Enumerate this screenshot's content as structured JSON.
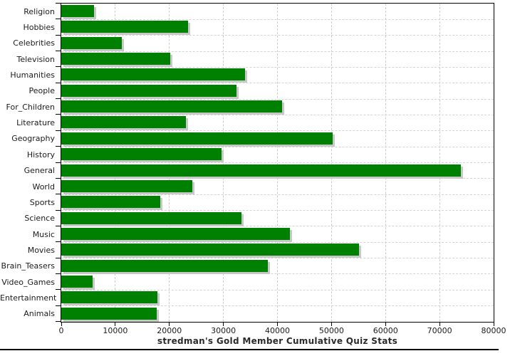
{
  "chart_data": {
    "type": "bar",
    "orientation": "horizontal",
    "title": "stredman's Gold Member Cumulative Quiz Stats",
    "categories": [
      "Religion",
      "Hobbies",
      "Celebrities",
      "Television",
      "Humanities",
      "People",
      "For_Children",
      "Literature",
      "Geography",
      "History",
      "General",
      "World",
      "Sports",
      "Science",
      "Music",
      "Movies",
      "Brain_Teasers",
      "Video_Games",
      "Entertainment",
      "Animals"
    ],
    "values": [
      6000,
      23400,
      11200,
      20100,
      34000,
      32400,
      40900,
      23100,
      50200,
      29700,
      74000,
      24300,
      18300,
      33300,
      42300,
      55100,
      38200,
      5800,
      17800,
      17700
    ],
    "xlabel": "",
    "ylabel": "",
    "xlim": [
      0,
      80000
    ],
    "x_ticks": [
      0,
      10000,
      20000,
      30000,
      40000,
      50000,
      60000,
      70000,
      80000
    ],
    "x_tick_labels": [
      "0",
      "10000",
      "20000",
      "30000",
      "40000",
      "50000",
      "60000",
      "70000",
      "80000"
    ],
    "grid": "dashed",
    "legend": "none",
    "bar_color": "#008000",
    "shadow_color": "#c8c8c8",
    "grid_color": "#cdcdcd",
    "axis_color": "#000000",
    "text_color": "#1c1c1c"
  }
}
